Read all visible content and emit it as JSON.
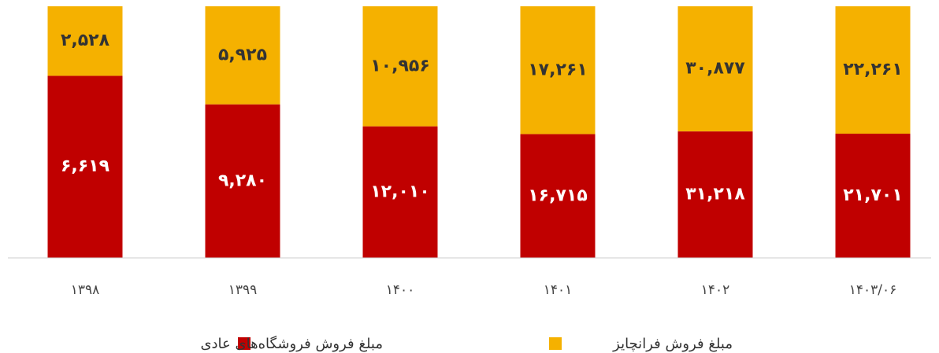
{
  "chart_data": {
    "type": "bar",
    "stacking": "percent",
    "categories": [
      "۱۳۹۸",
      "۱۳۹۹",
      "۱۴۰۰",
      "۱۴۰۱",
      "۱۴۰۲",
      "۱۴۰۳/۰۶"
    ],
    "series": [
      {
        "name": "مبلغ فروش فروشگاه‌های عادی",
        "color": "#c00000",
        "values": [
          6619,
          9280,
          12010,
          16715,
          31218,
          21701
        ],
        "value_labels": [
          "۶,۶۱۹",
          "۹,۲۸۰",
          "۱۲,۰۱۰",
          "۱۶,۷۱۵",
          "۳۱,۲۱۸",
          "۲۱,۷۰۱"
        ]
      },
      {
        "name": "مبلغ فروش فرانچایز",
        "color": "#f5b100",
        "values": [
          2528,
          5925,
          10956,
          17261,
          30877,
          22261
        ],
        "value_labels": [
          "۲,۵۲۸",
          "۵,۹۲۵",
          "۱۰,۹۵۶",
          "۱۷,۲۶۱",
          "۳۰,۸۷۷",
          "۲۲,۲۶۱"
        ]
      }
    ],
    "legend": "bottom"
  }
}
